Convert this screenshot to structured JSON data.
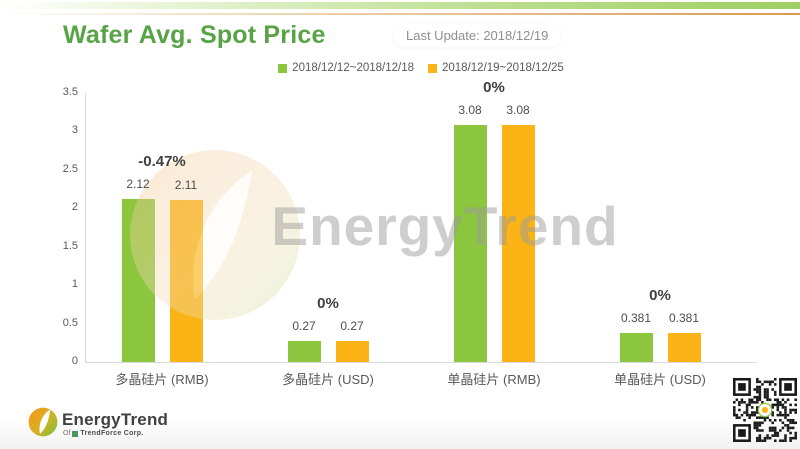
{
  "header": {
    "title": "Wafer Avg. Spot Price",
    "last_update": "Last Update: 2018/12/19"
  },
  "chart_data": {
    "type": "bar",
    "title": "Wafer Avg. Spot Price",
    "categories": [
      "多晶硅片 (RMB)",
      "多晶硅片 (USD)",
      "单晶硅片 (RMB)",
      "单晶硅片 (USD)"
    ],
    "series": [
      {
        "name": "2018/12/12~2018/12/18",
        "color": "#8CC63F",
        "values": [
          2.12,
          0.27,
          3.08,
          0.381
        ]
      },
      {
        "name": "2018/12/19~2018/12/25",
        "color": "#FBB316",
        "values": [
          2.11,
          0.27,
          3.08,
          0.381
        ]
      }
    ],
    "change_labels": [
      "-0.47%",
      "0%",
      "0%",
      "0%"
    ],
    "ylim": [
      0,
      3.5
    ],
    "yticks": [
      0,
      0.5,
      1,
      1.5,
      2,
      2.5,
      3,
      3.5
    ],
    "grid": false,
    "legend_position": "top-center"
  },
  "watermark": {
    "text": "EnergyTrend"
  },
  "footer": {
    "brand": "EnergyTrend",
    "sub_of": "Of",
    "sub_corp": "TrendForce Corp."
  },
  "colors": {
    "title_green": "#57A345",
    "bar_green": "#8CC63F",
    "bar_yellow": "#FBB316",
    "axis_gray": "#D9D9D9"
  }
}
